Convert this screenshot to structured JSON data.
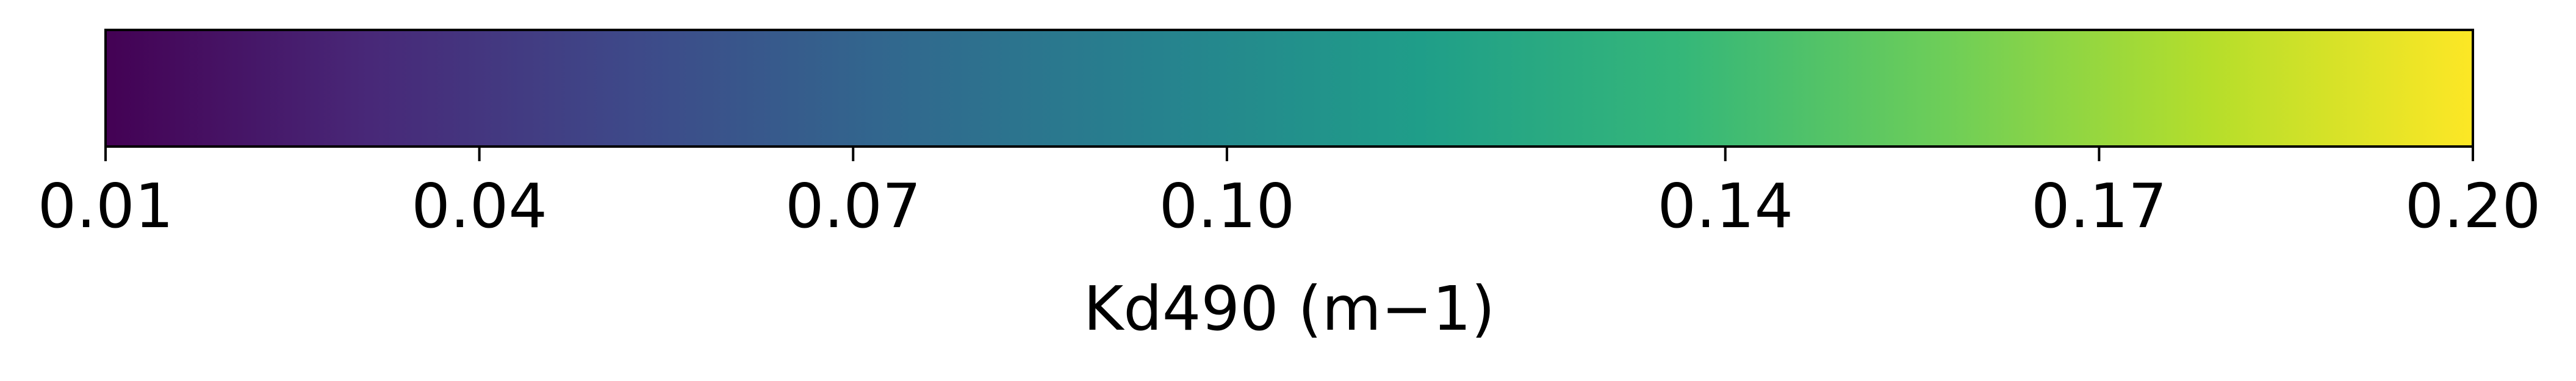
{
  "chart_data": {
    "type": "colorbar",
    "colormap": "viridis",
    "orientation": "horizontal",
    "range": [
      0.01,
      0.2
    ],
    "ticks": [
      {
        "value": 0.01,
        "label": "0.01"
      },
      {
        "value": 0.04,
        "label": "0.04"
      },
      {
        "value": 0.07,
        "label": "0.07"
      },
      {
        "value": 0.1,
        "label": "0.10"
      },
      {
        "value": 0.14,
        "label": "0.14"
      },
      {
        "value": 0.17,
        "label": "0.17"
      },
      {
        "value": 0.2,
        "label": "0.20"
      }
    ],
    "label": "Kd490 (m−1)",
    "color_stops": [
      "#440154",
      "#482878",
      "#3e4989",
      "#31688e",
      "#26828e",
      "#1f9e89",
      "#35b779",
      "#6ece58",
      "#b5de2b",
      "#fde725"
    ]
  }
}
